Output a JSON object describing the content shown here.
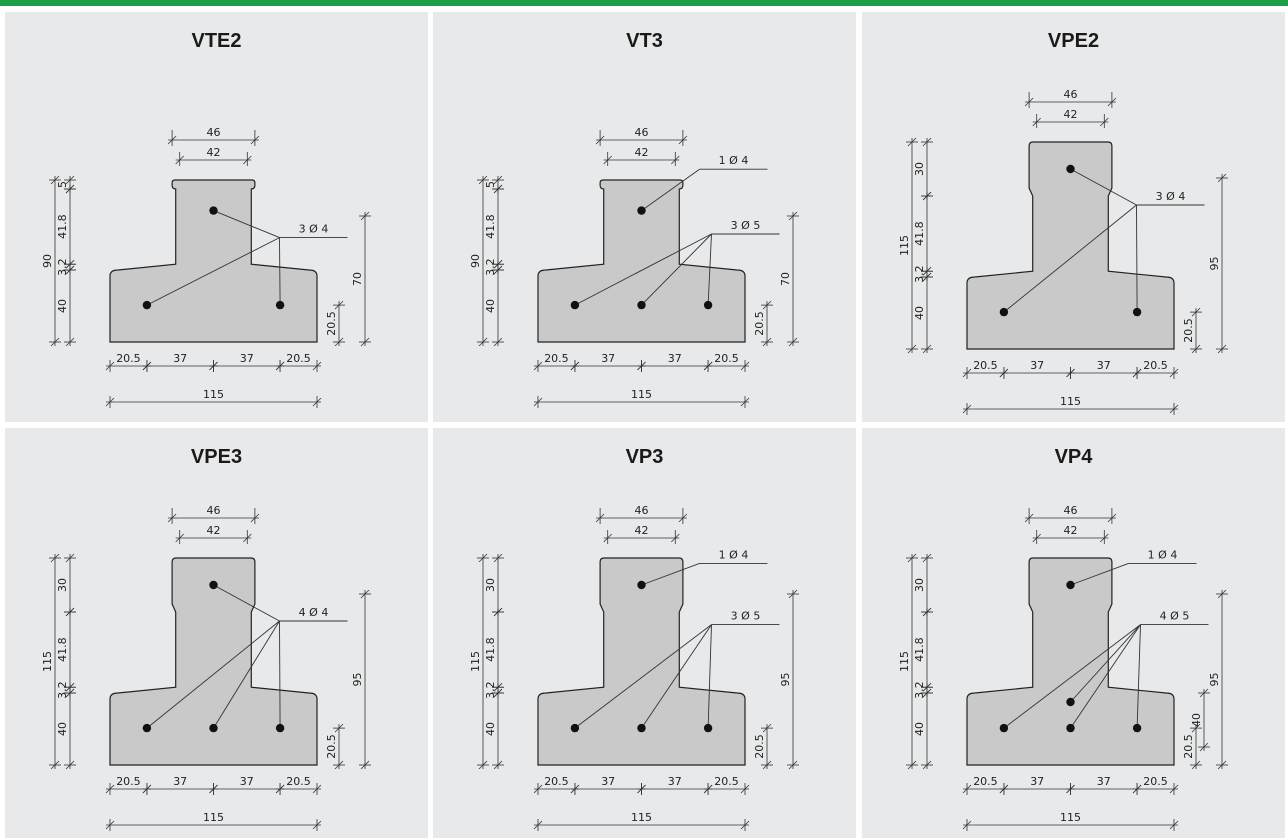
{
  "colors": {
    "accent_bar": "#1f9e4a",
    "panel_bg": "#e8e9ea",
    "section_fill": "#c9c9c9"
  },
  "panels": [
    {
      "title": "VTE2",
      "variant": "short",
      "rebar_groups": [
        {
          "label": "3 Ø 4",
          "bars": [
            "top",
            "bottom-left",
            "bottom-right"
          ]
        }
      ],
      "dims": {
        "top_outer": "46",
        "top_inner": "42",
        "left": [
          "5",
          "41.8",
          "3.2",
          "40"
        ],
        "total_height": "90",
        "right_height": "70",
        "right_bar_height": "20.5",
        "bottom": [
          "20.5",
          "37",
          "37",
          "20.5"
        ],
        "total_width": "115"
      }
    },
    {
      "title": "VT3",
      "variant": "short",
      "rebar_groups": [
        {
          "label": "1 Ø 4",
          "bars": [
            "top"
          ]
        },
        {
          "label": "3 Ø 5",
          "bars": [
            "bottom-left",
            "bottom-middle",
            "bottom-right"
          ]
        }
      ],
      "dims": {
        "top_outer": "46",
        "top_inner": "42",
        "left": [
          "5",
          "41.8",
          "3.2",
          "40"
        ],
        "total_height": "90",
        "right_height": "70",
        "right_bar_height": "20.5",
        "bottom": [
          "20.5",
          "37",
          "37",
          "20.5"
        ],
        "total_width": "115"
      }
    },
    {
      "title": "VPE2",
      "variant": "tall",
      "rebar_groups": [
        {
          "label": "3 Ø 4",
          "bars": [
            "top",
            "bottom-left",
            "bottom-right"
          ]
        }
      ],
      "dims": {
        "top_outer": "46",
        "top_inner": "42",
        "left": [
          "30",
          "41.8",
          "3.2",
          "40"
        ],
        "total_height": "115",
        "right_height": "95",
        "right_bar_height": "20.5",
        "bottom": [
          "20.5",
          "37",
          "37",
          "20.5"
        ],
        "total_width": "115"
      }
    },
    {
      "title": "VPE3",
      "variant": "tall",
      "rebar_groups": [
        {
          "label": "4 Ø 4",
          "bars": [
            "top",
            "bottom-left",
            "bottom-middle",
            "bottom-right"
          ]
        }
      ],
      "dims": {
        "top_outer": "46",
        "top_inner": "42",
        "left": [
          "30",
          "41.8",
          "3.2",
          "40"
        ],
        "total_height": "115",
        "right_height": "95",
        "right_bar_height": "20.5",
        "bottom": [
          "20.5",
          "37",
          "37",
          "20.5"
        ],
        "total_width": "115"
      }
    },
    {
      "title": "VP3",
      "variant": "tall",
      "rebar_groups": [
        {
          "label": "1 Ø 4",
          "bars": [
            "top"
          ]
        },
        {
          "label": "3 Ø 5",
          "bars": [
            "bottom-left",
            "bottom-middle",
            "bottom-right"
          ]
        }
      ],
      "dims": {
        "top_outer": "46",
        "top_inner": "42",
        "left": [
          "30",
          "41.8",
          "3.2",
          "40"
        ],
        "total_height": "115",
        "right_height": "95",
        "right_bar_height": "20.5",
        "bottom": [
          "20.5",
          "37",
          "37",
          "20.5"
        ],
        "total_width": "115"
      }
    },
    {
      "title": "VP4",
      "variant": "tall",
      "rebar_groups": [
        {
          "label": "1 Ø 4",
          "bars": [
            "top"
          ]
        },
        {
          "label": "4 Ø 5",
          "bars": [
            "mid",
            "bottom-left",
            "bottom-middle",
            "bottom-right"
          ]
        }
      ],
      "dims": {
        "top_outer": "46",
        "top_inner": "42",
        "left": [
          "30",
          "41.8",
          "3.2",
          "40"
        ],
        "total_height": "115",
        "right_height": "95",
        "right_bar_height": "20.5",
        "right_mid_height": "40",
        "bottom": [
          "20.5",
          "37",
          "37",
          "20.5"
        ],
        "total_width": "115"
      }
    }
  ]
}
